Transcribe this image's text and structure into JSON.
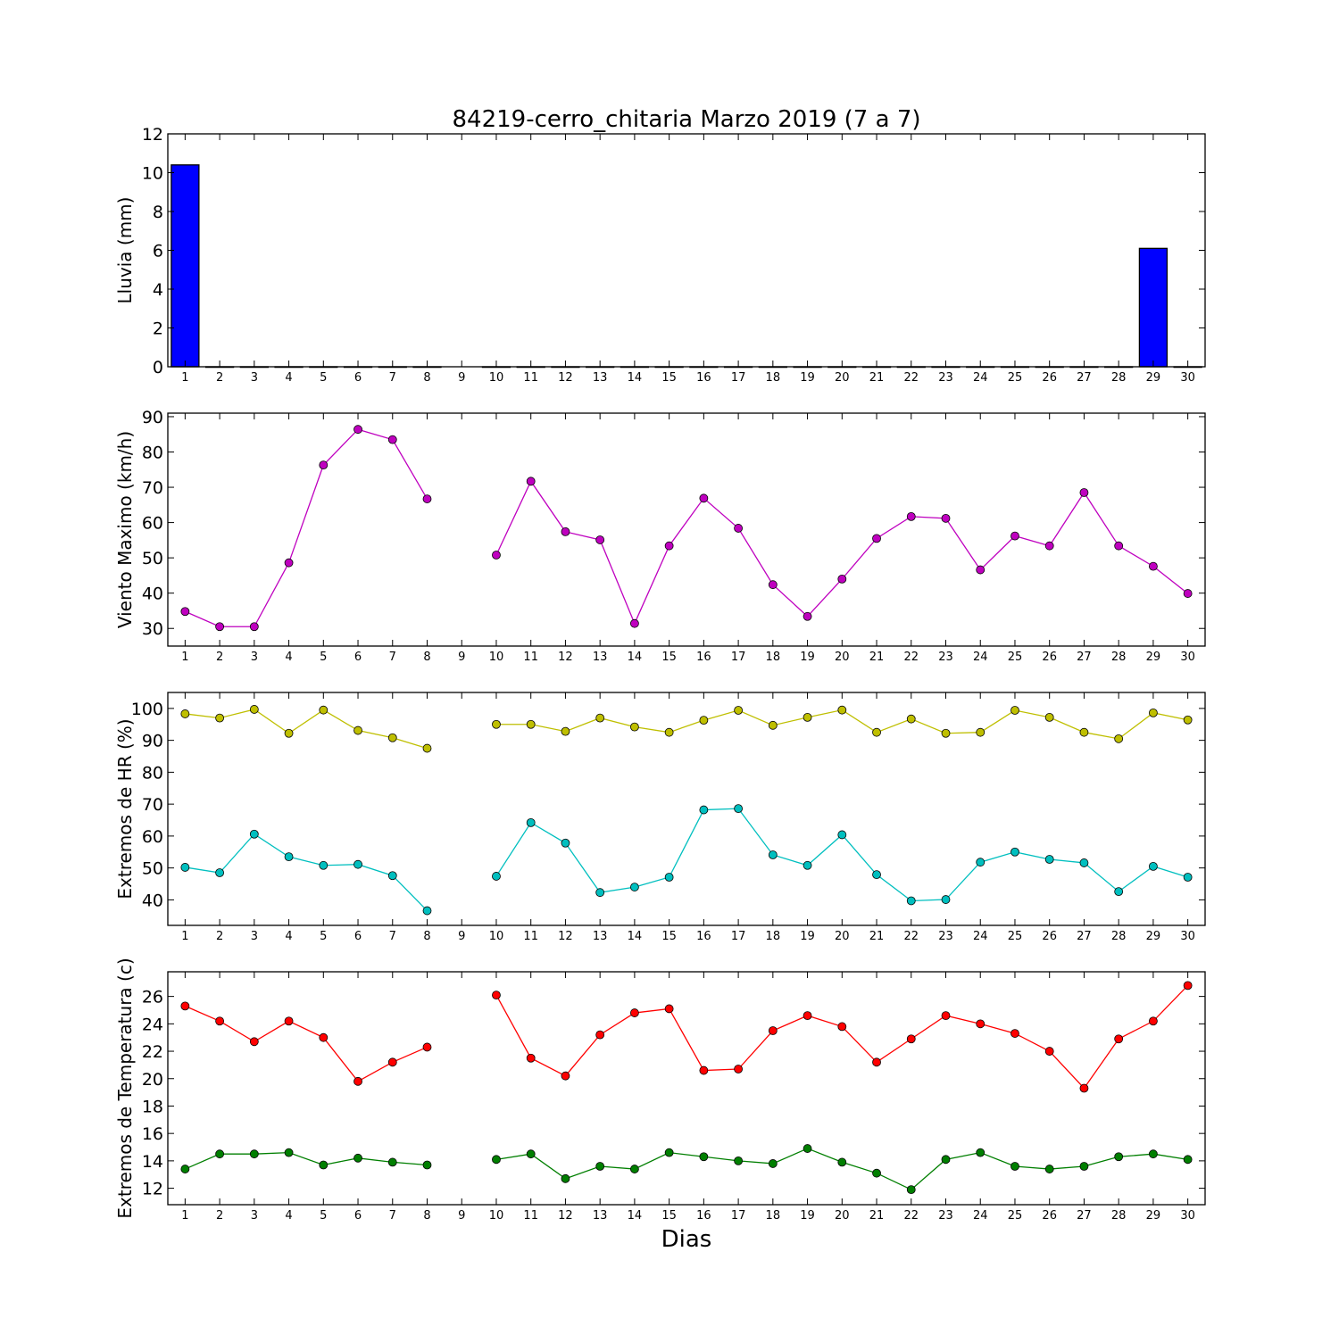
{
  "title": "84219-cerro_chitaria Marzo 2019  (7 a 7)",
  "xlabel": "Dias",
  "chart_data": [
    {
      "type": "bar",
      "ylabel": "Lluvia (mm)",
      "ylim": [
        0,
        12
      ],
      "yticks": [
        0,
        2,
        4,
        6,
        8,
        10,
        12
      ],
      "x": [
        1,
        2,
        3,
        4,
        5,
        6,
        7,
        8,
        9,
        10,
        11,
        12,
        13,
        14,
        15,
        16,
        17,
        18,
        19,
        20,
        21,
        22,
        23,
        24,
        25,
        26,
        27,
        28,
        29,
        30
      ],
      "series": [
        {
          "color": "#0000ff",
          "values": [
            10.4,
            0,
            0,
            0,
            0,
            0,
            0,
            0,
            null,
            0,
            0,
            0,
            0,
            0,
            0,
            0,
            0,
            0,
            0,
            0,
            0,
            0,
            0,
            0,
            0,
            0,
            0,
            0,
            6.1,
            0
          ]
        }
      ]
    },
    {
      "type": "line",
      "ylabel": "Viento Maximo (km/h)",
      "ylim": [
        25,
        91
      ],
      "yticks": [
        30,
        40,
        50,
        60,
        70,
        80,
        90
      ],
      "x": [
        1,
        2,
        3,
        4,
        5,
        6,
        7,
        8,
        9,
        10,
        11,
        12,
        13,
        14,
        15,
        16,
        17,
        18,
        19,
        20,
        21,
        22,
        23,
        24,
        25,
        26,
        27,
        28,
        29,
        30
      ],
      "series": [
        {
          "color": "#bf00bf",
          "values": [
            34.8,
            30.5,
            30.5,
            48.6,
            76.3,
            86.4,
            83.5,
            66.7,
            null,
            50.8,
            71.7,
            57.4,
            55.1,
            31.4,
            53.4,
            66.9,
            58.4,
            42.4,
            33.4,
            44.0,
            55.5,
            61.7,
            61.2,
            46.6,
            56.2,
            53.4,
            68.5,
            53.4,
            47.6,
            39.9
          ]
        }
      ]
    },
    {
      "type": "line",
      "ylabel": "Extremos de HR (%)",
      "ylim": [
        32,
        105
      ],
      "yticks": [
        40,
        50,
        60,
        70,
        80,
        90,
        100
      ],
      "x": [
        1,
        2,
        3,
        4,
        5,
        6,
        7,
        8,
        9,
        10,
        11,
        12,
        13,
        14,
        15,
        16,
        17,
        18,
        19,
        20,
        21,
        22,
        23,
        24,
        25,
        26,
        27,
        28,
        29,
        30
      ],
      "series": [
        {
          "color": "#bfbf00",
          "values": [
            98.3,
            97.0,
            99.7,
            92.2,
            99.5,
            93.1,
            90.8,
            87.5,
            null,
            95.0,
            95.0,
            92.8,
            97.0,
            94.2,
            92.5,
            96.3,
            99.4,
            94.7,
            97.2,
            99.5,
            92.5,
            96.7,
            92.2,
            92.5,
            99.4,
            97.2,
            92.5,
            90.5,
            98.6,
            96.4
          ]
        },
        {
          "color": "#00bfbf",
          "values": [
            50.2,
            48.5,
            60.6,
            53.5,
            50.8,
            51.1,
            47.6,
            36.6,
            null,
            47.4,
            64.2,
            57.8,
            42.3,
            44.0,
            47.1,
            68.2,
            68.6,
            54.1,
            50.8,
            60.4,
            47.9,
            39.7,
            40.1,
            51.8,
            55.0,
            52.7,
            51.6,
            42.6,
            50.5,
            47.1
          ]
        }
      ]
    },
    {
      "type": "line",
      "ylabel": "Extremos de Temperatura (c)",
      "ylim": [
        10.8,
        27.8
      ],
      "yticks": [
        12,
        14,
        16,
        18,
        20,
        22,
        24,
        26
      ],
      "x": [
        1,
        2,
        3,
        4,
        5,
        6,
        7,
        8,
        9,
        10,
        11,
        12,
        13,
        14,
        15,
        16,
        17,
        18,
        19,
        20,
        21,
        22,
        23,
        24,
        25,
        26,
        27,
        28,
        29,
        30
      ],
      "series": [
        {
          "color": "#ff0000",
          "values": [
            25.3,
            24.2,
            22.7,
            24.2,
            23.0,
            19.8,
            21.2,
            22.3,
            null,
            26.1,
            21.5,
            20.2,
            23.2,
            24.8,
            25.1,
            20.6,
            20.7,
            23.5,
            24.6,
            23.8,
            21.2,
            22.9,
            24.6,
            24.0,
            23.3,
            22.0,
            19.3,
            22.9,
            24.2,
            26.8
          ]
        },
        {
          "color": "#007f00",
          "values": [
            13.4,
            14.5,
            14.5,
            14.6,
            13.7,
            14.2,
            13.9,
            13.7,
            null,
            14.1,
            14.5,
            12.7,
            13.6,
            13.4,
            14.6,
            14.3,
            14.0,
            13.8,
            14.9,
            13.9,
            13.1,
            11.9,
            14.1,
            14.6,
            13.6,
            13.4,
            13.6,
            14.3,
            14.5,
            14.1
          ]
        }
      ]
    }
  ]
}
